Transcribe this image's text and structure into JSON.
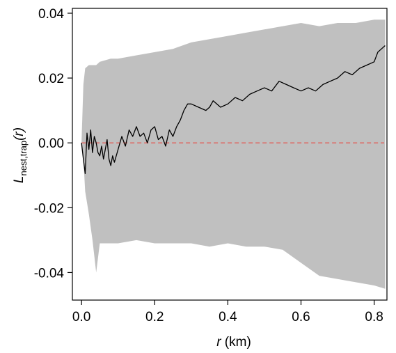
{
  "chart_data": {
    "type": "line",
    "xlabel_var": "r",
    "xlabel_unit": " (km)",
    "ylabel_main": "L",
    "ylabel_sub": "nest,trap",
    "ylabel_tail": "(r)",
    "xlim": [
      -0.025,
      0.835
    ],
    "ylim": [
      -0.0485,
      0.0415
    ],
    "xticks": [
      0.0,
      0.2,
      0.4,
      0.6,
      0.8
    ],
    "xtick_labels": [
      "0.0",
      "0.2",
      "0.4",
      "0.6",
      "0.8"
    ],
    "yticks": [
      -0.04,
      -0.02,
      0.0,
      0.02,
      0.04
    ],
    "ytick_labels": [
      "-0.04",
      "-0.02",
      "0.00",
      "0.02",
      "0.04"
    ],
    "reference_line": {
      "y": 0.0,
      "color": "#e8483f",
      "style": "dashed"
    },
    "envelope": {
      "color": "#c0c0c0",
      "x": [
        0.0,
        0.005,
        0.01,
        0.02,
        0.03,
        0.04,
        0.05,
        0.08,
        0.1,
        0.15,
        0.2,
        0.25,
        0.3,
        0.35,
        0.4,
        0.45,
        0.5,
        0.55,
        0.6,
        0.65,
        0.7,
        0.75,
        0.8,
        0.83
      ],
      "upper": [
        0.0,
        0.018,
        0.023,
        0.024,
        0.024,
        0.024,
        0.025,
        0.026,
        0.026,
        0.027,
        0.028,
        0.029,
        0.031,
        0.032,
        0.033,
        0.034,
        0.035,
        0.036,
        0.037,
        0.036,
        0.037,
        0.037,
        0.038,
        0.038
      ],
      "lower": [
        0.0,
        -0.005,
        -0.015,
        -0.022,
        -0.03,
        -0.04,
        -0.031,
        -0.031,
        -0.031,
        -0.03,
        -0.031,
        -0.031,
        -0.031,
        -0.032,
        -0.031,
        -0.032,
        -0.032,
        -0.033,
        -0.037,
        -0.041,
        -0.042,
        -0.043,
        -0.044,
        -0.045
      ]
    },
    "series": [
      {
        "color": "#000000",
        "x": [
          0.0,
          0.005,
          0.01,
          0.015,
          0.02,
          0.025,
          0.03,
          0.035,
          0.04,
          0.045,
          0.05,
          0.055,
          0.06,
          0.065,
          0.07,
          0.075,
          0.08,
          0.085,
          0.09,
          0.1,
          0.11,
          0.12,
          0.13,
          0.14,
          0.15,
          0.16,
          0.17,
          0.18,
          0.19,
          0.2,
          0.21,
          0.22,
          0.23,
          0.24,
          0.25,
          0.26,
          0.27,
          0.28,
          0.29,
          0.3,
          0.32,
          0.34,
          0.35,
          0.36,
          0.38,
          0.4,
          0.42,
          0.44,
          0.46,
          0.48,
          0.5,
          0.52,
          0.54,
          0.56,
          0.58,
          0.6,
          0.62,
          0.64,
          0.66,
          0.68,
          0.7,
          0.72,
          0.74,
          0.76,
          0.78,
          0.8,
          0.81,
          0.82,
          0.83
        ],
        "y": [
          0.0,
          -0.005,
          -0.0095,
          0.003,
          -0.002,
          0.004,
          -0.003,
          0.002,
          0.0,
          -0.003,
          -0.004,
          -0.001,
          -0.005,
          -0.002,
          0.001,
          -0.005,
          -0.007,
          -0.004,
          -0.006,
          -0.002,
          0.002,
          -0.001,
          0.004,
          0.002,
          0.005,
          0.002,
          0.003,
          0.0,
          0.004,
          0.005,
          0.001,
          0.002,
          -0.001,
          0.004,
          0.002,
          0.005,
          0.007,
          0.01,
          0.012,
          0.012,
          0.011,
          0.01,
          0.011,
          0.013,
          0.011,
          0.012,
          0.014,
          0.013,
          0.015,
          0.016,
          0.017,
          0.016,
          0.019,
          0.018,
          0.017,
          0.016,
          0.017,
          0.016,
          0.018,
          0.019,
          0.02,
          0.022,
          0.021,
          0.023,
          0.024,
          0.025,
          0.028,
          0.029,
          0.03
        ]
      }
    ]
  }
}
